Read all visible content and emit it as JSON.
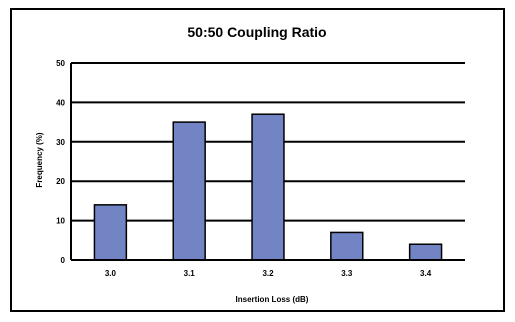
{
  "chart_data": {
    "type": "bar",
    "title": "50:50 Coupling Ratio",
    "xlabel": "Insertion Loss (dB)",
    "ylabel": "Frequency (%)",
    "categories": [
      "3.0",
      "3.1",
      "3.2",
      "3.3",
      "3.4"
    ],
    "values": [
      14,
      35,
      37,
      7,
      4
    ],
    "ylim": [
      0,
      50
    ],
    "yticks": [
      0,
      10,
      20,
      30,
      40,
      50
    ],
    "grid": true,
    "bar_color": "#7384c4",
    "legend": "none"
  }
}
